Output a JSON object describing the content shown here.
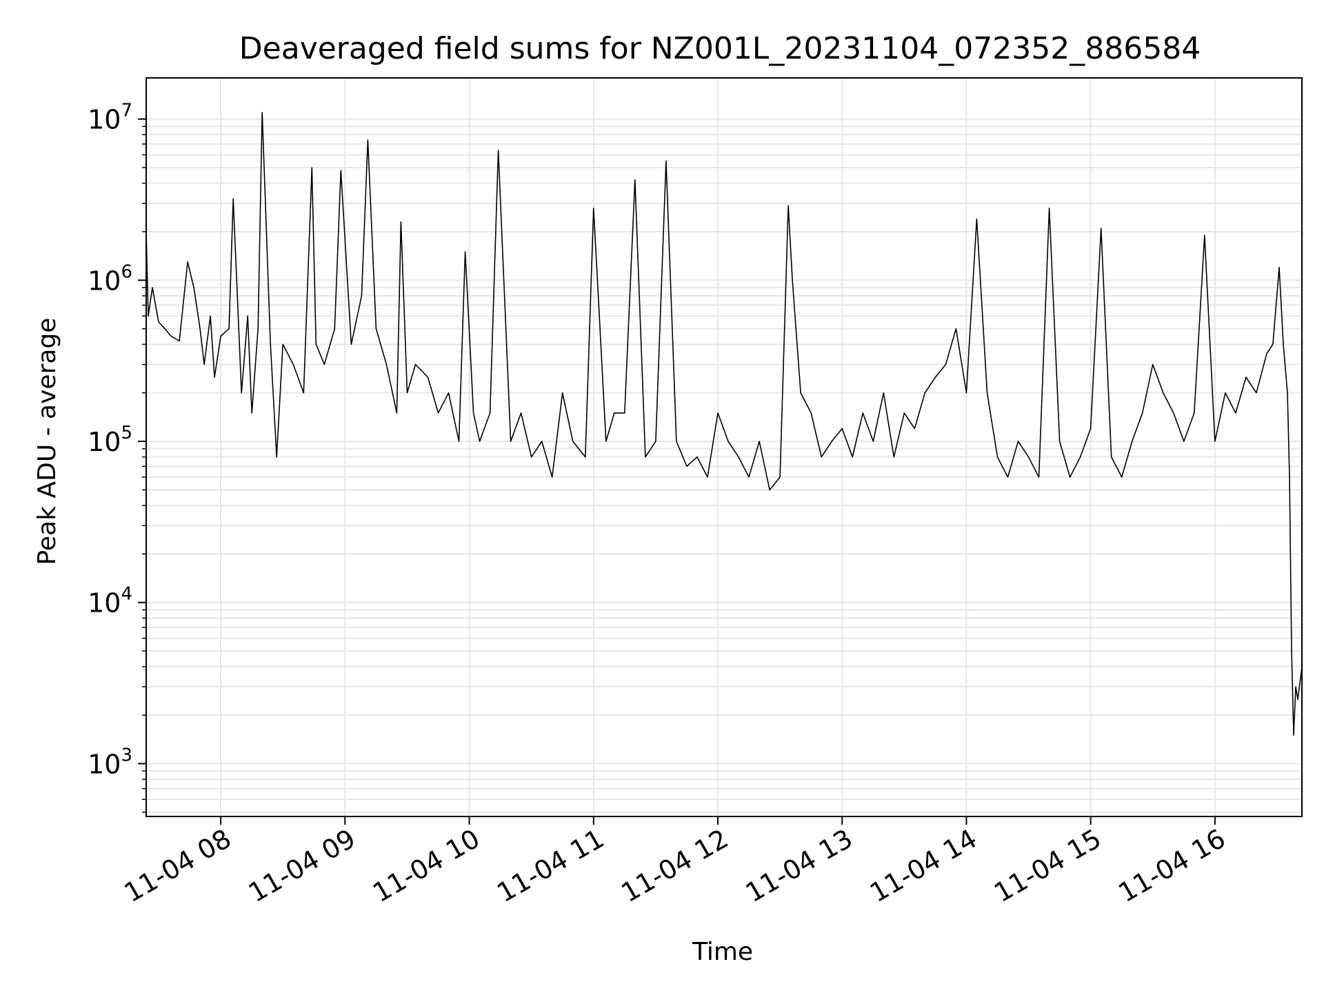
{
  "chart_data": {
    "type": "line",
    "title": "Deaveraged field sums for NZ001L_20231104_072352_886584",
    "xlabel": "Time",
    "ylabel": "Peak ADU - average",
    "yscale": "log",
    "ylim": [
      470,
      18000000
    ],
    "xlim": [
      "2023-11-04 07:24",
      "2023-11-04 16:42"
    ],
    "grid": true,
    "line_color": "#000000",
    "x_ticks": [
      {
        "label": "11-04 08",
        "time": "2023-11-04 08:00"
      },
      {
        "label": "11-04 09",
        "time": "2023-11-04 09:00"
      },
      {
        "label": "11-04 10",
        "time": "2023-11-04 10:00"
      },
      {
        "label": "11-04 11",
        "time": "2023-11-04 11:00"
      },
      {
        "label": "11-04 12",
        "time": "2023-11-04 12:00"
      },
      {
        "label": "11-04 13",
        "time": "2023-11-04 13:00"
      },
      {
        "label": "11-04 14",
        "time": "2023-11-04 14:00"
      },
      {
        "label": "11-04 15",
        "time": "2023-11-04 15:00"
      },
      {
        "label": "11-04 16",
        "time": "2023-11-04 16:00"
      }
    ],
    "y_ticks": [
      {
        "base": "10",
        "exp": "3",
        "value": 1000
      },
      {
        "base": "10",
        "exp": "4",
        "value": 10000
      },
      {
        "base": "10",
        "exp": "5",
        "value": 100000
      },
      {
        "base": "10",
        "exp": "6",
        "value": 1000000
      },
      {
        "base": "10",
        "exp": "7",
        "value": 10000000
      }
    ],
    "series": [
      {
        "x": [
          "2023-11-04 07:24",
          "2023-11-04 07:25",
          "2023-11-04 07:27",
          "2023-11-04 07:30",
          "2023-11-04 07:33",
          "2023-11-04 07:36",
          "2023-11-04 07:40",
          "2023-11-04 07:44",
          "2023-11-04 07:47",
          "2023-11-04 07:50",
          "2023-11-04 07:52",
          "2023-11-04 07:55",
          "2023-11-04 07:57",
          "2023-11-04 08:00",
          "2023-11-04 08:04",
          "2023-11-04 08:06",
          "2023-11-04 08:10",
          "2023-11-04 08:13",
          "2023-11-04 08:15",
          "2023-11-04 08:18",
          "2023-11-04 08:20",
          "2023-11-04 08:24",
          "2023-11-04 08:27",
          "2023-11-04 08:30",
          "2023-11-04 08:35",
          "2023-11-04 08:40",
          "2023-11-04 08:44",
          "2023-11-04 08:46",
          "2023-11-04 08:50",
          "2023-11-04 08:55",
          "2023-11-04 08:58",
          "2023-11-04 09:03",
          "2023-11-04 09:08",
          "2023-11-04 09:11",
          "2023-11-04 09:15",
          "2023-11-04 09:20",
          "2023-11-04 09:25",
          "2023-11-04 09:27",
          "2023-11-04 09:30",
          "2023-11-04 09:34",
          "2023-11-04 09:40",
          "2023-11-04 09:45",
          "2023-11-04 09:50",
          "2023-11-04 09:55",
          "2023-11-04 09:58",
          "2023-11-04 10:02",
          "2023-11-04 10:05",
          "2023-11-04 10:10",
          "2023-11-04 10:14",
          "2023-11-04 10:20",
          "2023-11-04 10:25",
          "2023-11-04 10:30",
          "2023-11-04 10:35",
          "2023-11-04 10:40",
          "2023-11-04 10:45",
          "2023-11-04 10:50",
          "2023-11-04 10:56",
          "2023-11-04 11:00",
          "2023-11-04 11:06",
          "2023-11-04 11:10",
          "2023-11-04 11:15",
          "2023-11-04 11:20",
          "2023-11-04 11:25",
          "2023-11-04 11:30",
          "2023-11-04 11:35",
          "2023-11-04 11:40",
          "2023-11-04 11:45",
          "2023-11-04 11:50",
          "2023-11-04 11:55",
          "2023-11-04 12:00",
          "2023-11-04 12:05",
          "2023-11-04 12:10",
          "2023-11-04 12:15",
          "2023-11-04 12:20",
          "2023-11-04 12:25",
          "2023-11-04 12:30",
          "2023-11-04 12:34",
          "2023-11-04 12:36",
          "2023-11-04 12:40",
          "2023-11-04 12:45",
          "2023-11-04 12:50",
          "2023-11-04 12:55",
          "2023-11-04 13:00",
          "2023-11-04 13:05",
          "2023-11-04 13:10",
          "2023-11-04 13:15",
          "2023-11-04 13:20",
          "2023-11-04 13:25",
          "2023-11-04 13:30",
          "2023-11-04 13:35",
          "2023-11-04 13:40",
          "2023-11-04 13:45",
          "2023-11-04 13:50",
          "2023-11-04 13:55",
          "2023-11-04 14:00",
          "2023-11-04 14:05",
          "2023-11-04 14:10",
          "2023-11-04 14:15",
          "2023-11-04 14:20",
          "2023-11-04 14:25",
          "2023-11-04 14:30",
          "2023-11-04 14:35",
          "2023-11-04 14:40",
          "2023-11-04 14:45",
          "2023-11-04 14:50",
          "2023-11-04 14:55",
          "2023-11-04 15:00",
          "2023-11-04 15:05",
          "2023-11-04 15:10",
          "2023-11-04 15:15",
          "2023-11-04 15:20",
          "2023-11-04 15:25",
          "2023-11-04 15:30",
          "2023-11-04 15:35",
          "2023-11-04 15:40",
          "2023-11-04 15:45",
          "2023-11-04 15:50",
          "2023-11-04 15:55",
          "2023-11-04 16:00",
          "2023-11-04 16:05",
          "2023-11-04 16:10",
          "2023-11-04 16:15",
          "2023-11-04 16:20",
          "2023-11-04 16:25",
          "2023-11-04 16:28",
          "2023-11-04 16:31",
          "2023-11-04 16:33",
          "2023-11-04 16:35",
          "2023-11-04 16:36",
          "2023-11-04 16:37",
          "2023-11-04 16:38",
          "2023-11-04 16:39",
          "2023-11-04 16:40",
          "2023-11-04 16:42"
        ],
        "y": [
          2000000,
          600000,
          900000,
          550000,
          500000,
          450000,
          420000,
          1300000,
          900000,
          500000,
          300000,
          600000,
          250000,
          450000,
          500000,
          3200000,
          200000,
          600000,
          150000,
          500000,
          11000000,
          400000,
          80000,
          400000,
          300000,
          200000,
          5000000,
          400000,
          300000,
          500000,
          4800000,
          400000,
          800000,
          7400000,
          500000,
          300000,
          150000,
          2300000,
          200000,
          300000,
          250000,
          150000,
          200000,
          100000,
          1500000,
          150000,
          100000,
          150000,
          6400000,
          100000,
          150000,
          80000,
          100000,
          60000,
          200000,
          100000,
          80000,
          2800000,
          100000,
          150000,
          150000,
          4200000,
          80000,
          100000,
          5500000,
          100000,
          70000,
          80000,
          60000,
          150000,
          100000,
          80000,
          60000,
          100000,
          50000,
          60000,
          2900000,
          1000000,
          200000,
          150000,
          80000,
          100000,
          120000,
          80000,
          150000,
          100000,
          200000,
          80000,
          150000,
          120000,
          200000,
          250000,
          300000,
          500000,
          200000,
          2400000,
          200000,
          80000,
          60000,
          100000,
          80000,
          60000,
          2800000,
          100000,
          60000,
          80000,
          120000,
          2100000,
          80000,
          60000,
          100000,
          150000,
          300000,
          200000,
          150000,
          100000,
          150000,
          1900000,
          100000,
          200000,
          150000,
          250000,
          200000,
          350000,
          400000,
          1200000,
          400000,
          200000,
          60000,
          5000,
          1500,
          3000,
          2500,
          4000
        ]
      }
    ]
  }
}
